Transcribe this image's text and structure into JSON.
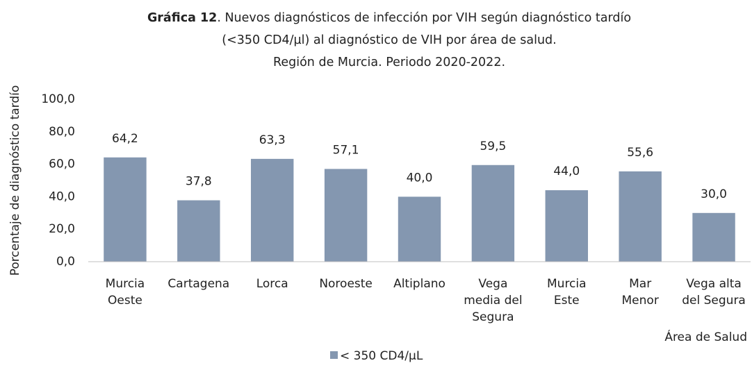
{
  "chart_data": {
    "type": "bar",
    "title_bold": "Gráfica 12",
    "title": [
      ". Nuevos diagnósticos de infección por VIH según diagnóstico tardío",
      "(<350 CD4/µl) al diagnóstico de VIH por área de salud.",
      "Región de Murcia. Periodo 2020-2022."
    ],
    "y_label": "Porcentaje de diagnóstico tardío",
    "x_label": "Área de Salud",
    "categories": [
      [
        "Murcia",
        "Oeste"
      ],
      [
        "Cartagena"
      ],
      [
        "Lorca"
      ],
      [
        "Noroeste"
      ],
      [
        "Altiplano"
      ],
      [
        "Vega",
        "media del",
        "Segura"
      ],
      [
        "Murcia",
        "Este"
      ],
      [
        "Mar",
        "Menor"
      ],
      [
        "Vega alta",
        "del Segura"
      ]
    ],
    "series": [
      {
        "name": "< 350 CD4/µL",
        "color": "#8497b0",
        "values": [
          64.2,
          37.8,
          63.3,
          57.1,
          40.0,
          59.5,
          44.0,
          55.6,
          30.0
        ],
        "value_labels": [
          "64,2",
          "37,8",
          "63,3",
          "57,1",
          "40,0",
          "59,5",
          "44,0",
          "55,6",
          "30,0"
        ]
      }
    ],
    "ylim": [
      0,
      100
    ],
    "yticks": [
      {
        "value": 0,
        "label": "0,0"
      },
      {
        "value": 20,
        "label": "20,0"
      },
      {
        "value": 40,
        "label": "40,0"
      },
      {
        "value": 60,
        "label": "60,0"
      },
      {
        "value": 80,
        "label": "80,0"
      },
      {
        "value": 100,
        "label": "100,0"
      }
    ],
    "grid": false,
    "legend": "bottom"
  }
}
